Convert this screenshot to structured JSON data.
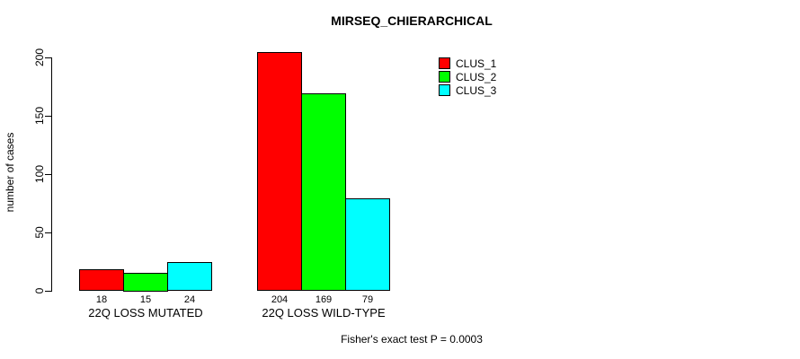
{
  "chart_data": {
    "type": "bar",
    "title": "MIRSEQ_CHIERARCHICAL",
    "xlabel": "",
    "ylabel": "number of cases",
    "categories": [
      "22Q LOSS MUTATED",
      "22Q LOSS WILD-TYPE"
    ],
    "series": [
      {
        "name": "CLUS_1",
        "color": "#FF0000",
        "values": [
          18,
          204
        ]
      },
      {
        "name": "CLUS_2",
        "color": "#00FF00",
        "values": [
          15,
          169
        ]
      },
      {
        "name": "CLUS_3",
        "color": "#00FFFF",
        "values": [
          24,
          79
        ]
      }
    ],
    "yticks": [
      0,
      50,
      100,
      150,
      200
    ],
    "ylim": [
      0,
      205
    ],
    "grid": false,
    "bar_value_labels_shown": true,
    "legend_position": "top-right",
    "legend_entries": [
      "CLUS_1",
      "CLUS_2",
      "CLUS_3"
    ],
    "annotation": "Fisher's exact test P = 0.0003",
    "background_color": "#FFFFFF",
    "bar_border_color": "#000000"
  }
}
